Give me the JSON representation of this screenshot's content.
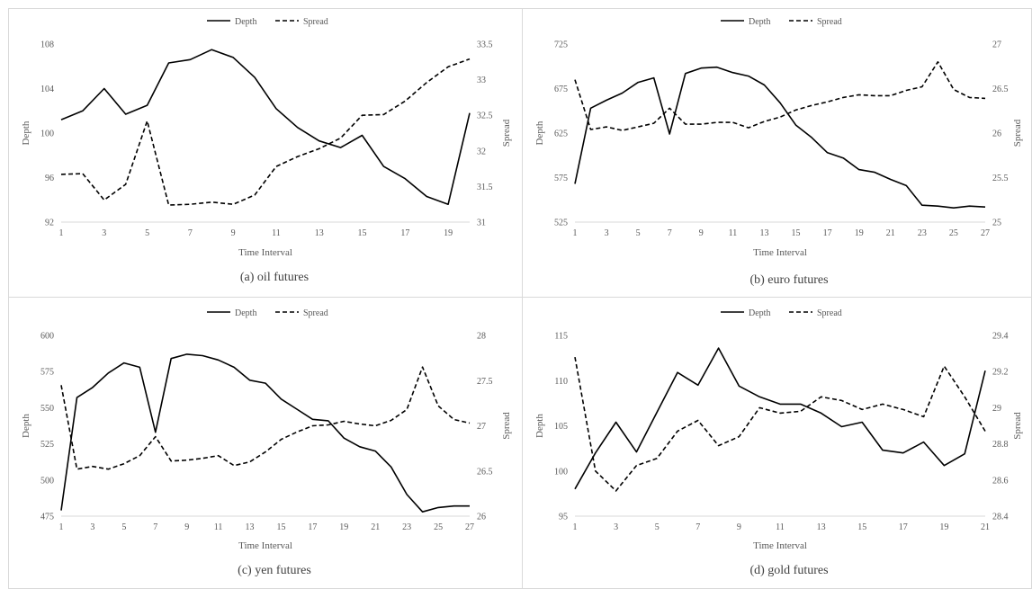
{
  "chart_data": [
    {
      "type": "line",
      "caption": "(a) oil futures",
      "xlabel": "Time Interval",
      "ylabel": "Depth",
      "y2label": "Spread",
      "x": [
        1,
        2,
        3,
        4,
        5,
        6,
        7,
        8,
        9,
        10,
        11,
        12,
        13,
        14,
        15,
        16,
        17,
        18,
        19,
        20
      ],
      "xticks": [
        1,
        3,
        5,
        7,
        9,
        11,
        13,
        15,
        17,
        19
      ],
      "ylim": [
        92,
        108
      ],
      "yticks": [
        92,
        96,
        100,
        104,
        108
      ],
      "y2lim": [
        31,
        33.5
      ],
      "y2ticks": [
        "31",
        "31.5",
        "32",
        "32.5",
        "33",
        "33.5"
      ],
      "legend_position": "top-center",
      "series": [
        {
          "name": "Depth",
          "axis": "left",
          "style": "solid",
          "values": [
            101.2,
            102.0,
            104.0,
            101.7,
            102.5,
            106.3,
            106.6,
            107.5,
            106.8,
            105.0,
            102.2,
            100.5,
            99.3,
            98.7,
            99.8,
            97.0,
            95.9,
            94.3,
            93.6,
            101.8
          ]
        },
        {
          "name": "Spread",
          "axis": "right",
          "style": "dashed",
          "values": [
            31.67,
            31.68,
            31.31,
            31.53,
            32.42,
            31.24,
            31.25,
            31.28,
            31.25,
            31.38,
            31.78,
            31.92,
            32.03,
            32.18,
            32.5,
            32.51,
            32.7,
            32.96,
            33.18,
            33.29
          ]
        }
      ]
    },
    {
      "type": "line",
      "caption": "(b) euro futures",
      "xlabel": "Time Interval",
      "ylabel": "Depth",
      "y2label": "Spread",
      "x": [
        1,
        2,
        3,
        4,
        5,
        6,
        7,
        8,
        9,
        10,
        11,
        12,
        13,
        14,
        15,
        16,
        17,
        18,
        19,
        20,
        21,
        22,
        23,
        24,
        25,
        26,
        27
      ],
      "xticks": [
        1,
        3,
        5,
        7,
        9,
        11,
        13,
        15,
        17,
        19,
        21,
        23,
        25,
        27
      ],
      "ylim": [
        525,
        725
      ],
      "yticks": [
        525,
        575,
        625,
        675,
        725
      ],
      "y2lim": [
        25,
        27
      ],
      "y2ticks": [
        "25",
        "25.5",
        "26",
        "26.5",
        "27"
      ],
      "legend_position": "top-center",
      "series": [
        {
          "name": "Depth",
          "axis": "left",
          "style": "solid",
          "values": [
            568,
            653,
            662,
            670,
            682,
            687,
            624,
            692,
            698,
            699,
            693,
            689,
            679,
            659,
            634,
            620,
            603,
            597,
            584,
            581,
            573,
            566,
            544,
            543,
            541,
            543,
            542
          ]
        },
        {
          "name": "Spread",
          "axis": "right",
          "style": "dashed",
          "values": [
            26.6,
            26.04,
            26.07,
            26.03,
            26.07,
            26.11,
            26.28,
            26.1,
            26.1,
            26.12,
            26.12,
            26.06,
            26.13,
            26.18,
            26.26,
            26.31,
            26.35,
            26.4,
            26.43,
            26.42,
            26.42,
            26.48,
            26.52,
            26.8,
            26.49,
            26.4,
            26.39
          ]
        }
      ]
    },
    {
      "type": "line",
      "caption": "(c) yen futures",
      "xlabel": "Time Interval",
      "ylabel": "Depth",
      "y2label": "Spread",
      "x": [
        1,
        2,
        3,
        4,
        5,
        6,
        7,
        8,
        9,
        10,
        11,
        12,
        13,
        14,
        15,
        16,
        17,
        18,
        19,
        20,
        21,
        22,
        23,
        24,
        25,
        26,
        27
      ],
      "xticks": [
        1,
        3,
        5,
        7,
        9,
        11,
        13,
        15,
        17,
        19,
        21,
        23,
        25,
        27
      ],
      "ylim": [
        475,
        600
      ],
      "yticks": [
        475,
        500,
        525,
        550,
        575,
        600
      ],
      "y2lim": [
        26,
        28
      ],
      "y2ticks": [
        "26",
        "26.5",
        "27",
        "27.5",
        "28"
      ],
      "legend_position": "top-center",
      "series": [
        {
          "name": "Depth",
          "axis": "left",
          "style": "solid",
          "values": [
            479,
            557,
            564,
            574,
            581,
            578,
            533,
            584,
            587,
            586,
            583,
            578,
            569,
            567,
            556,
            549,
            542,
            541,
            529,
            523,
            520,
            509,
            490,
            478,
            481,
            482,
            482
          ]
        },
        {
          "name": "Spread",
          "axis": "right",
          "style": "dashed",
          "values": [
            27.45,
            26.52,
            26.55,
            26.52,
            26.58,
            26.67,
            26.88,
            26.61,
            26.62,
            26.64,
            26.67,
            26.56,
            26.6,
            26.71,
            26.85,
            26.93,
            27.0,
            27.01,
            27.05,
            27.02,
            27.0,
            27.06,
            27.18,
            27.65,
            27.22,
            27.07,
            27.03
          ]
        }
      ]
    },
    {
      "type": "line",
      "caption": "(d) gold futures",
      "xlabel": "Time Interval",
      "ylabel": "Depth",
      "y2label": "Spread",
      "x": [
        1,
        2,
        3,
        4,
        5,
        6,
        7,
        8,
        9,
        10,
        11,
        12,
        13,
        14,
        15,
        16,
        17,
        18,
        19,
        20,
        21
      ],
      "xticks": [
        1,
        3,
        5,
        7,
        9,
        11,
        13,
        15,
        17,
        19,
        21
      ],
      "ylim": [
        95,
        115
      ],
      "yticks": [
        95,
        100,
        105,
        110,
        115
      ],
      "y2lim": [
        28.4,
        29.4
      ],
      "y2ticks": [
        "28.4",
        "28.6",
        "28.8",
        "29",
        "29.2",
        "29.4"
      ],
      "legend_position": "top-center",
      "series": [
        {
          "name": "Depth",
          "axis": "left",
          "style": "solid",
          "values": [
            98.0,
            102.0,
            105.4,
            102.1,
            106.5,
            110.9,
            109.5,
            113.6,
            109.4,
            108.2,
            107.4,
            107.4,
            106.4,
            104.9,
            105.4,
            102.3,
            102.0,
            103.2,
            100.6,
            101.9,
            111.1
          ]
        },
        {
          "name": "Spread",
          "axis": "right",
          "style": "dashed",
          "values": [
            29.28,
            28.65,
            28.54,
            28.68,
            28.72,
            28.87,
            28.93,
            28.79,
            28.84,
            29.0,
            28.97,
            28.98,
            29.06,
            29.04,
            28.99,
            29.02,
            28.99,
            28.95,
            29.23,
            29.06,
            28.87
          ]
        }
      ]
    }
  ]
}
